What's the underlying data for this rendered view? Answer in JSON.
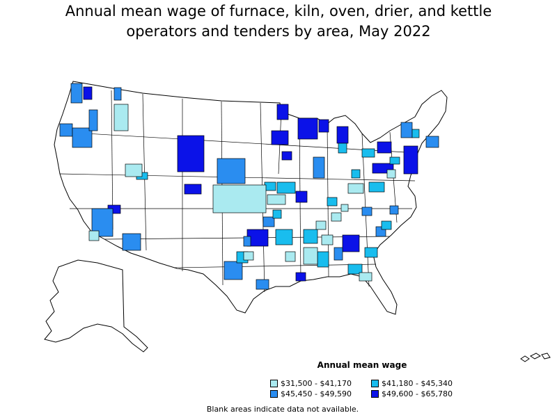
{
  "title": {
    "line1": "Annual mean wage of furnace, kiln, oven, drier, and kettle",
    "line2": "operators and tenders by area, May 2022"
  },
  "legend": {
    "title": "Annual mean wage",
    "items": [
      {
        "label": "$31,500 - $41,170",
        "color": "#aaeaf0"
      },
      {
        "label": "$41,180 - $45,340",
        "color": "#19bdee"
      },
      {
        "label": "$45,450 - $49,590",
        "color": "#2a8df0"
      },
      {
        "label": "$49,600 - $65,780",
        "color": "#0b12e8"
      }
    ]
  },
  "footnote": "Blank areas indicate data not available.",
  "colors": {
    "no_data": "#ffffff",
    "border": "#000000"
  }
}
